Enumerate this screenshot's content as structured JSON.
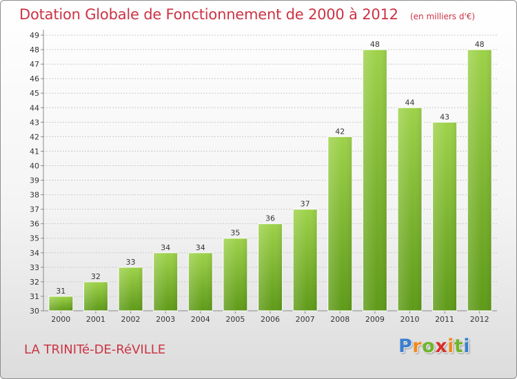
{
  "chart_data": {
    "type": "bar",
    "title": "Dotation Globale de Fonctionnement de 2000 à 2012",
    "subtitle": "(en milliers d'€)",
    "categories": [
      "2000",
      "2001",
      "2002",
      "2003",
      "2004",
      "2005",
      "2006",
      "2007",
      "2008",
      "2009",
      "2010",
      "2011",
      "2012"
    ],
    "values": [
      31,
      32,
      33,
      34,
      34,
      35,
      36,
      37,
      42,
      48,
      44,
      43,
      48
    ],
    "ylim": [
      30,
      49
    ],
    "yticks": [
      30,
      31,
      32,
      33,
      34,
      35,
      36,
      37,
      38,
      39,
      40,
      41,
      42,
      43,
      44,
      45,
      46,
      47,
      48,
      49
    ],
    "grid": true,
    "bar_color": "#7fbf2a",
    "grid_color": "#c8c8c8"
  },
  "footer": {
    "commune": "LA TRINITé-DE-RéVILLE",
    "logo_letters": [
      "P",
      "r",
      "o",
      "x",
      "i",
      "t",
      "i"
    ],
    "logo_colors": [
      "#3a7fd0",
      "#f08a1c",
      "#6fb52c",
      "#d8302a",
      "#f08a1c",
      "#6fb52c",
      "#3a7fd0"
    ]
  }
}
